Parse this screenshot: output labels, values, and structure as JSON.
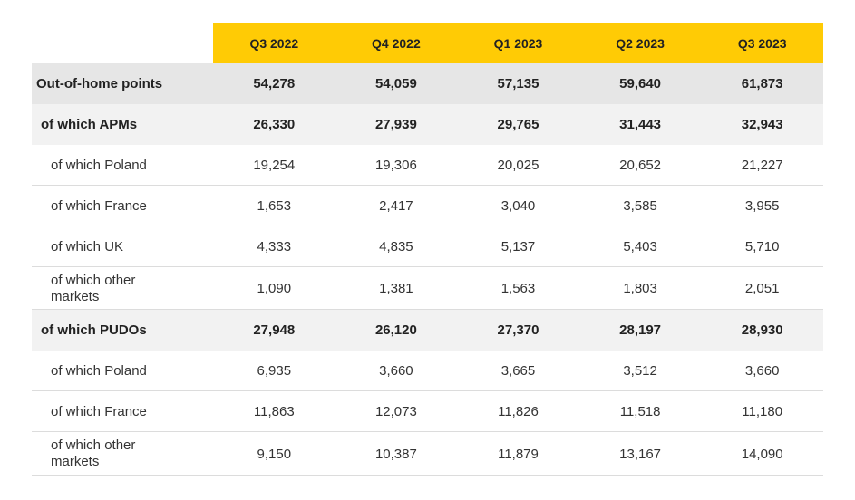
{
  "header": {
    "columns": [
      "Q3 2022",
      "Q4 2022",
      "Q1 2023",
      "Q2 2023",
      "Q3 2023"
    ]
  },
  "table": {
    "rows": [
      {
        "label": "Out-of-home points",
        "values": [
          "54,278",
          "54,059",
          "57,135",
          "59,640",
          "61,873"
        ]
      },
      {
        "label": "of which APMs",
        "values": [
          "26,330",
          "27,939",
          "29,765",
          "31,443",
          "32,943"
        ]
      },
      {
        "label": "of which Poland",
        "values": [
          "19,254",
          "19,306",
          "20,025",
          "20,652",
          "21,227"
        ]
      },
      {
        "label": "of which France",
        "values": [
          "1,653",
          "2,417",
          "3,040",
          "3,585",
          "3,955"
        ]
      },
      {
        "label": "of which UK",
        "values": [
          "4,333",
          "4,835",
          "5,137",
          "5,403",
          "5,710"
        ]
      },
      {
        "label": "of which other markets",
        "values": [
          "1,090",
          "1,381",
          "1,563",
          "1,803",
          "2,051"
        ]
      },
      {
        "label": "of which PUDOs",
        "values": [
          "27,948",
          "26,120",
          "27,370",
          "28,197",
          "28,930"
        ]
      },
      {
        "label": "of which Poland",
        "values": [
          "6,935",
          "3,660",
          "3,665",
          "3,512",
          "3,660"
        ]
      },
      {
        "label": "of which France",
        "values": [
          "11,863",
          "12,073",
          "11,826",
          "11,518",
          "11,180"
        ]
      },
      {
        "label": "of which other markets",
        "values": [
          "9,150",
          "10,387",
          "11,879",
          "13,167",
          "14,090"
        ]
      }
    ]
  }
}
